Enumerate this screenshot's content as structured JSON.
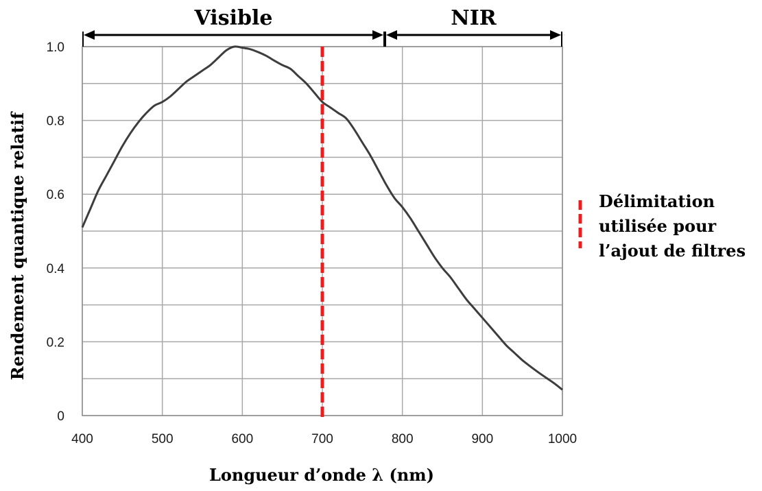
{
  "chart_data": {
    "type": "line",
    "title": "",
    "xlabel": "Longueur d’onde λ (nm)",
    "ylabel": "Rendement quantique relatif",
    "xlim": [
      400,
      1000
    ],
    "ylim": [
      0,
      1.0
    ],
    "x_ticks": [
      400,
      500,
      600,
      700,
      800,
      900,
      1000
    ],
    "x_tick_labels": [
      "400",
      "500",
      "600",
      "700",
      "800",
      "900",
      "1000"
    ],
    "y_ticks": [
      0,
      0.2,
      0.4,
      0.6,
      0.8,
      1.0
    ],
    "y_tick_labels": [
      "0",
      "0.2",
      "0.4",
      "0.6",
      "0.8",
      "1.0"
    ],
    "y_grid_step": 0.1,
    "grid": true,
    "series": [
      {
        "color": "#3d3d3d",
        "x": [
          400,
          410,
          420,
          430,
          440,
          450,
          460,
          470,
          480,
          490,
          500,
          510,
          520,
          530,
          540,
          550,
          560,
          570,
          580,
          590,
          600,
          610,
          620,
          630,
          640,
          650,
          660,
          670,
          680,
          690,
          700,
          710,
          720,
          730,
          740,
          750,
          760,
          770,
          780,
          790,
          800,
          810,
          820,
          830,
          840,
          850,
          860,
          870,
          880,
          890,
          900,
          910,
          920,
          930,
          940,
          950,
          960,
          970,
          980,
          990,
          1000
        ],
        "y": [
          0.51,
          0.56,
          0.61,
          0.65,
          0.69,
          0.73,
          0.765,
          0.795,
          0.82,
          0.84,
          0.85,
          0.865,
          0.885,
          0.905,
          0.92,
          0.935,
          0.95,
          0.97,
          0.99,
          1.0,
          0.997,
          0.993,
          0.985,
          0.975,
          0.962,
          0.95,
          0.94,
          0.92,
          0.9,
          0.875,
          0.85,
          0.835,
          0.82,
          0.805,
          0.775,
          0.74,
          0.705,
          0.665,
          0.625,
          0.59,
          0.565,
          0.535,
          0.5,
          0.465,
          0.43,
          0.4,
          0.375,
          0.345,
          0.315,
          0.29,
          0.265,
          0.24,
          0.215,
          0.19,
          0.17,
          0.15,
          0.133,
          0.117,
          0.102,
          0.087,
          0.07
        ]
      }
    ],
    "reference_line": {
      "x": 700,
      "color": "#ee1c1c",
      "style": "dashed"
    },
    "regions": [
      {
        "label": "Visible",
        "from": 400,
        "to": 778
      },
      {
        "label": "NIR",
        "from": 778,
        "to": 1000
      }
    ],
    "annotation": {
      "lines": [
        "Délimitation",
        "utilisée pour",
        "l’ajout de filtres"
      ]
    },
    "legend_position": "right"
  }
}
